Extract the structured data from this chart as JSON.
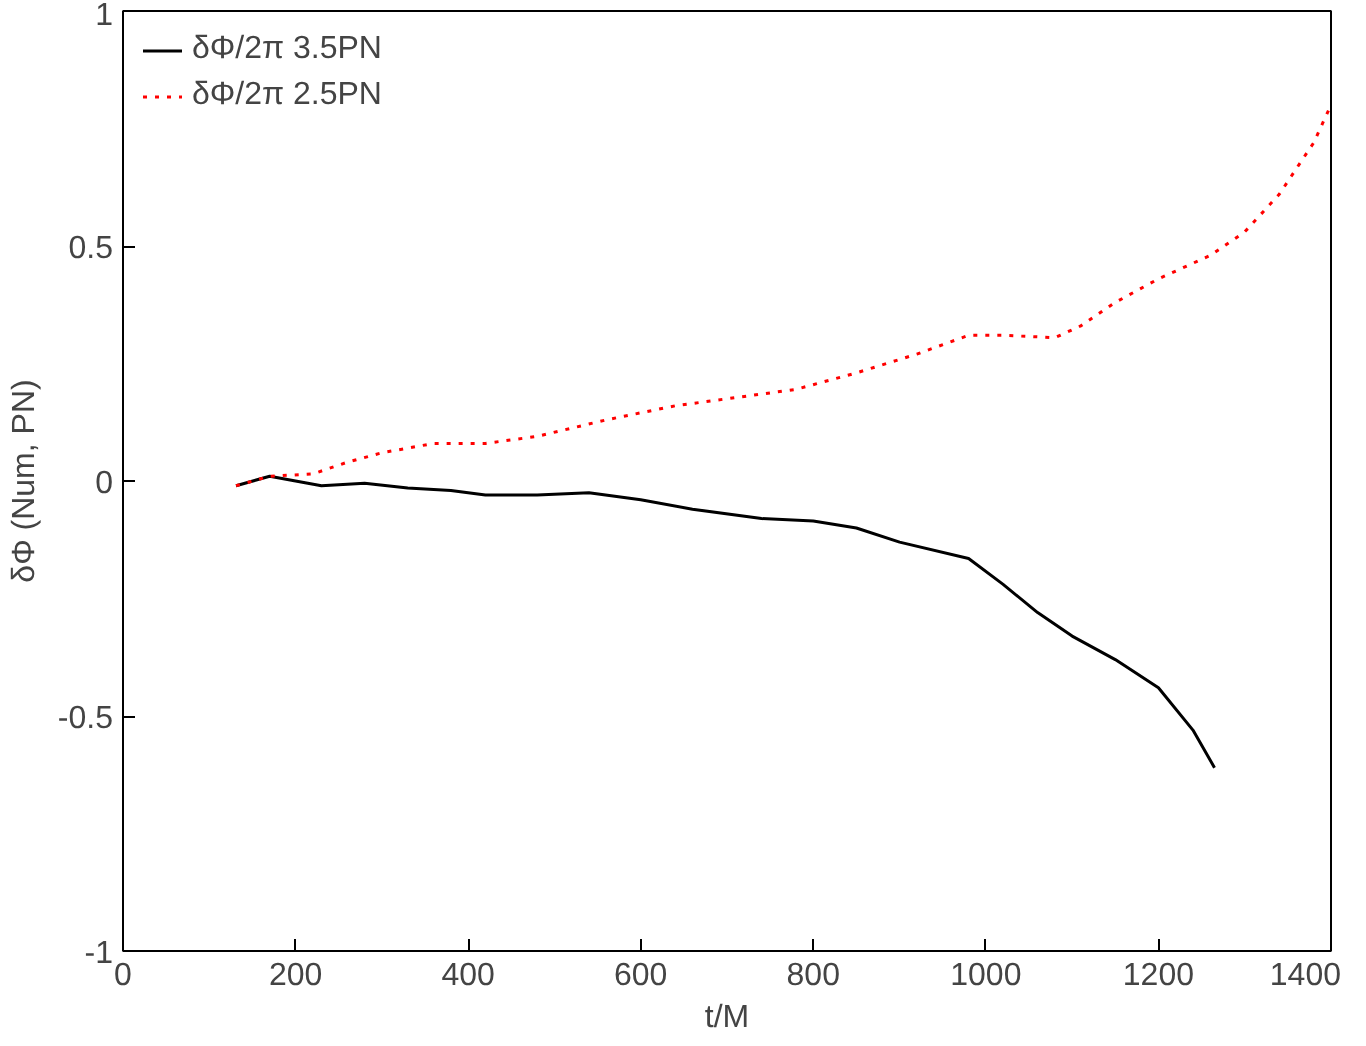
{
  "chart_data": {
    "type": "line",
    "xlabel": "t/M",
    "ylabel": "δΦ (Num, PN)",
    "xlim": [
      0,
      1400
    ],
    "ylim": [
      -1,
      1
    ],
    "xticks": [
      0,
      200,
      400,
      600,
      800,
      1000,
      1200,
      1400
    ],
    "yticks": [
      -1,
      -0.5,
      0,
      0.5,
      1
    ],
    "grid": false,
    "legend": "top left",
    "series": [
      {
        "name": "δΦ/2π 3.5PN",
        "color": "#000000",
        "line_style": "solid",
        "x": [
          131,
          170,
          200,
          230,
          280,
          330,
          380,
          420,
          480,
          540,
          600,
          660,
          740,
          800,
          850,
          900,
          980,
          1020,
          1060,
          1100,
          1150,
          1200,
          1240,
          1265
        ],
        "values": [
          -0.01,
          0.01,
          0.0,
          -0.01,
          -0.005,
          -0.015,
          -0.02,
          -0.03,
          -0.03,
          -0.025,
          -0.04,
          -0.06,
          -0.08,
          -0.085,
          -0.1,
          -0.13,
          -0.165,
          -0.22,
          -0.28,
          -0.33,
          -0.38,
          -0.44,
          -0.53,
          -0.61
        ]
      },
      {
        "name": "δΦ/2π 2.5PN",
        "color": "#ff0000",
        "line_style": "dotted",
        "x": [
          131,
          170,
          220,
          260,
          300,
          360,
          420,
          480,
          560,
          640,
          720,
          780,
          850,
          920,
          980,
          1020,
          1080,
          1110,
          1150,
          1200,
          1260,
          1300,
          1340,
          1380,
          1400
        ],
        "values": [
          -0.01,
          0.01,
          0.015,
          0.04,
          0.06,
          0.08,
          0.08,
          0.095,
          0.13,
          0.16,
          0.18,
          0.195,
          0.23,
          0.27,
          0.31,
          0.31,
          0.305,
          0.33,
          0.38,
          0.43,
          0.48,
          0.53,
          0.61,
          0.72,
          0.8
        ]
      }
    ]
  }
}
